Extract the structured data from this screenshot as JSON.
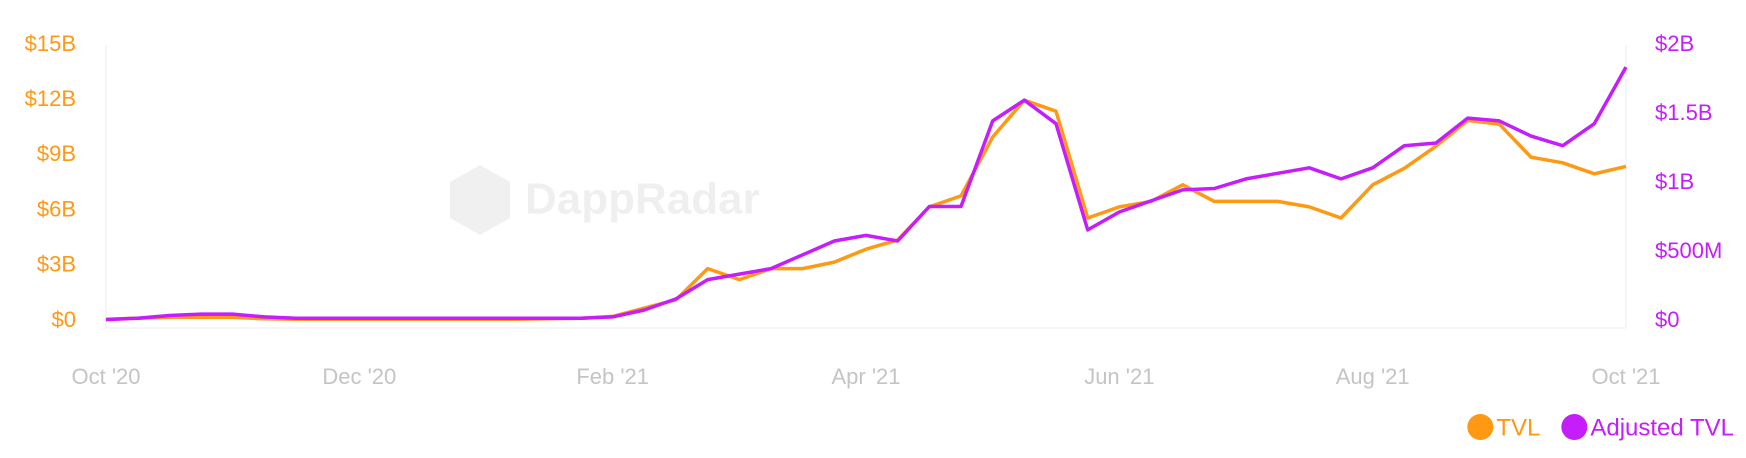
{
  "chart_data": {
    "type": "line",
    "watermark": "DappRadar",
    "categories": [
      "Oct '20",
      null,
      null,
      null,
      null,
      null,
      null,
      null,
      "Dec '20",
      null,
      null,
      null,
      null,
      null,
      null,
      null,
      "Feb '21",
      null,
      null,
      null,
      null,
      null,
      null,
      null,
      "Apr '21",
      null,
      null,
      null,
      null,
      null,
      null,
      null,
      "Jun '21",
      null,
      null,
      null,
      null,
      null,
      null,
      null,
      "Aug '21",
      null,
      null,
      null,
      null,
      null,
      null,
      null,
      "Oct '21"
    ],
    "series": [
      {
        "name": "TVL",
        "color": "#ff9812",
        "axis": "y",
        "values": [
          0.1,
          0.15,
          0.2,
          0.2,
          0.2,
          0.12,
          0.1,
          0.1,
          0.1,
          0.1,
          0.1,
          0.1,
          0.1,
          0.1,
          0.12,
          0.15,
          0.25,
          0.7,
          1.15,
          2.85,
          2.25,
          2.85,
          2.85,
          3.2,
          3.9,
          4.4,
          6.2,
          6.8,
          10.0,
          12.0,
          11.4,
          5.6,
          6.2,
          6.5,
          7.4,
          6.5,
          6.5,
          6.5,
          6.2,
          5.6,
          7.4,
          8.3,
          9.5,
          10.9,
          10.7,
          8.9,
          8.6,
          8.0,
          8.4
        ]
      },
      {
        "name": "Adjusted TVL",
        "color": "#c51dfb",
        "axis": "y2",
        "values": [
          0.01,
          0.02,
          0.04,
          0.05,
          0.05,
          0.03,
          0.02,
          0.02,
          0.02,
          0.02,
          0.02,
          0.02,
          0.02,
          0.02,
          0.02,
          0.02,
          0.03,
          0.08,
          0.16,
          0.3,
          0.34,
          0.38,
          0.48,
          0.58,
          0.62,
          0.58,
          0.83,
          0.83,
          1.45,
          1.6,
          1.43,
          0.66,
          0.79,
          0.87,
          0.95,
          0.96,
          1.03,
          1.07,
          1.11,
          1.03,
          1.11,
          1.27,
          1.29,
          1.47,
          1.45,
          1.34,
          1.27,
          1.43,
          1.84
        ]
      }
    ],
    "ylim": [
      0,
      15
    ],
    "yticks": [
      {
        "value": 0,
        "label": "$0"
      },
      {
        "value": 3,
        "label": "$3B"
      },
      {
        "value": 6,
        "label": "$6B"
      },
      {
        "value": 9,
        "label": "$9B"
      },
      {
        "value": 12,
        "label": "$12B"
      },
      {
        "value": 15,
        "label": "$15B"
      }
    ],
    "y2lim": [
      0,
      2
    ],
    "y2ticks": [
      {
        "value": 0,
        "label": "$0"
      },
      {
        "value": 0.5,
        "label": "$500M"
      },
      {
        "value": 1,
        "label": "$1B"
      },
      {
        "value": 1.5,
        "label": "$1.5B"
      },
      {
        "value": 2,
        "label": "$2B"
      }
    ],
    "grid": false,
    "legend": "bottom-right"
  }
}
